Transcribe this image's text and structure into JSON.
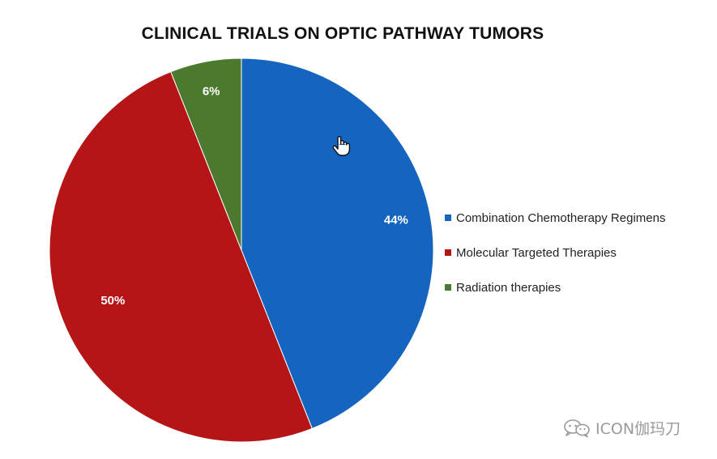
{
  "chart_data": {
    "type": "pie",
    "title": "CLINICAL TRIALS ON OPTIC PATHWAY TUMORS",
    "categories": [
      "Combination Chemotherapy Regimens",
      "Molecular Targeted Therapies",
      "Radiation therapies"
    ],
    "values": [
      44,
      50,
      6
    ],
    "data_labels": [
      "44%",
      "50%",
      "6%"
    ],
    "colors": [
      "#1565c0",
      "#b51516",
      "#4b7a2e"
    ],
    "legend_position": "right",
    "start_angle": "top (12 o'clock), clockwise"
  },
  "watermark": {
    "text": "ICON伽玛刀",
    "icon": "wechat-icon"
  },
  "cursor": {
    "icon": "hand-pointer-icon"
  }
}
